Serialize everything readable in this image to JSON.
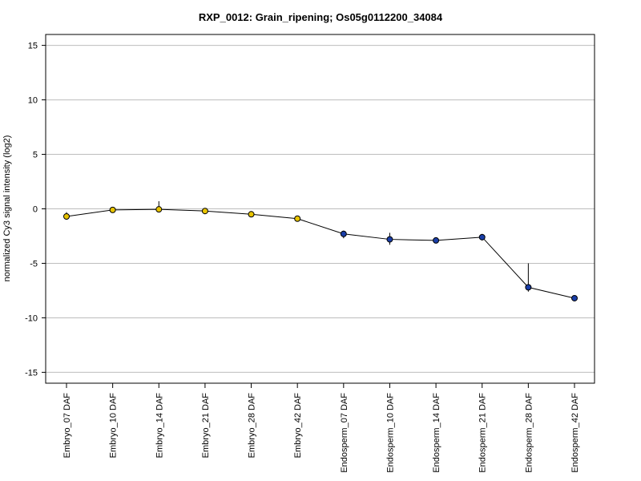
{
  "chart_data": {
    "type": "line",
    "title": "RXP_0012: Grain_ripening; Os05g0112200_34084",
    "xlabel": "",
    "ylabel": "normalized Cy3 signal intensity (log2)",
    "ylim": [
      -16,
      16
    ],
    "yticks": [
      -15,
      -10,
      -5,
      0,
      5,
      10,
      15
    ],
    "grid": true,
    "categories": [
      "Embryo_07 DAF",
      "Embryo_10 DAF",
      "Embryo_14 DAF",
      "Embryo_21 DAF",
      "Embryo_28 DAF",
      "Embryo_42 DAF",
      "Endosperm_07 DAF",
      "Endosperm_10 DAF",
      "Endosperm_14 DAF",
      "Endosperm_21 DAF",
      "Endosperm_28 DAF",
      "Endosperm_42 DAF"
    ],
    "series": [
      {
        "values": [
          -0.7,
          -0.1,
          -0.05,
          -0.2,
          -0.5,
          -0.9,
          -2.3,
          -2.8,
          -2.9,
          -2.6,
          -7.2,
          -8.2
        ],
        "err_low": [
          -1.0,
          -0.2,
          -0.2,
          -0.3,
          -0.6,
          -1.1,
          -2.7,
          -3.3,
          -3.1,
          -2.9,
          -7.6,
          -8.3
        ],
        "err_high": [
          -0.3,
          0.0,
          0.7,
          -0.1,
          -0.4,
          -0.7,
          -2.0,
          -2.2,
          -2.7,
          -2.3,
          -5.0,
          -8.0
        ],
        "colors": [
          "#e8c400",
          "#e8c400",
          "#e8c400",
          "#e8c400",
          "#e8c400",
          "#e8c400",
          "#1a3ea8",
          "#1a3ea8",
          "#1a3ea8",
          "#1a3ea8",
          "#1a3ea8",
          "#1a3ea8"
        ]
      }
    ]
  }
}
